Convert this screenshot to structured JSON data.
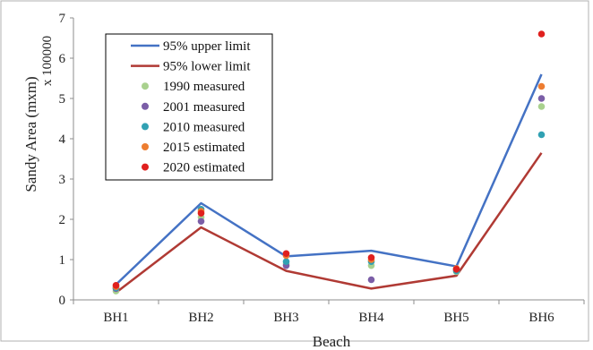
{
  "chart_data": {
    "type": "line",
    "title": "",
    "xlabel": "Beach",
    "ylabel": "Sandy Area (mxm)",
    "ylabel_multiplier": "x 100000",
    "categories": [
      "BH1",
      "BH2",
      "BH3",
      "BH4",
      "BH5",
      "BH6"
    ],
    "ylim": [
      0,
      7
    ],
    "yticks": [
      "0",
      "1",
      "2",
      "3",
      "4",
      "5",
      "6",
      "7"
    ],
    "grid": false,
    "legend_position": "top-left",
    "series": [
      {
        "name": "95% upper limit",
        "kind": "line",
        "color": "#4472C4",
        "values": [
          0.38,
          2.4,
          1.08,
          1.22,
          0.83,
          5.6
        ]
      },
      {
        "name": "95% lower limit",
        "kind": "line",
        "color": "#B03A34",
        "values": [
          0.18,
          1.8,
          0.72,
          0.28,
          0.6,
          3.65
        ]
      },
      {
        "name": "1990 measured",
        "kind": "marker",
        "color": "#A9D18E",
        "values": [
          0.22,
          2.05,
          0.9,
          0.85,
          0.7,
          4.8
        ]
      },
      {
        "name": "2001 measured",
        "kind": "marker",
        "color": "#7B5EA7",
        "values": [
          0.28,
          1.95,
          0.85,
          0.5,
          0.75,
          5.0
        ]
      },
      {
        "name": "2010 measured",
        "kind": "marker",
        "color": "#31A1B3",
        "values": [
          0.3,
          2.25,
          0.95,
          0.95,
          0.72,
          4.1
        ]
      },
      {
        "name": "2015 estimated",
        "kind": "marker",
        "color": "#ED7D31",
        "values": [
          0.33,
          2.2,
          1.1,
          1.0,
          0.78,
          5.3
        ]
      },
      {
        "name": "2020 estimated",
        "kind": "marker",
        "color": "#E0201E",
        "values": [
          0.36,
          2.15,
          1.15,
          1.05,
          0.76,
          6.6
        ]
      }
    ]
  }
}
